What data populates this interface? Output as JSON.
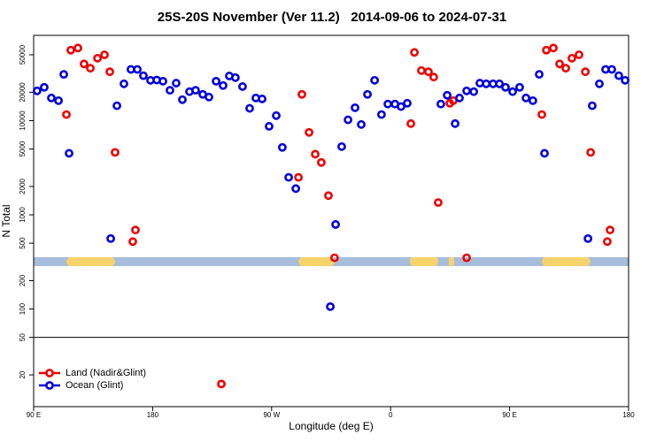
{
  "chart_data": {
    "type": "scatter",
    "title": "25S-20S November (Ver 11.2)   2014-09-06 to 2024-07-31",
    "x_label": "Longitude (deg E)",
    "y_label": "N Total",
    "xlim": [
      90,
      540
    ],
    "xticks": [
      {
        "value": 90,
        "label": "90 E"
      },
      180,
      {
        "value": 270,
        "label": "90 W"
      },
      {
        "value": 360,
        "label": "0"
      },
      {
        "value": 450,
        "label": "90 E"
      },
      {
        "value": 540,
        "label": "180"
      }
    ],
    "ylim": [
      9.2,
      80400
    ],
    "log_y": true,
    "yticks": [
      20,
      50,
      100,
      200,
      500,
      1000,
      2000,
      5000,
      10000,
      20000,
      50000
    ],
    "hline": 50,
    "legend": "bottom-left",
    "series": [
      {
        "name": "Land (Nadir&Glint)",
        "color": "#ee0000",
        "x": [
          114.8,
          118.1,
          123.5,
          128.1,
          132.9,
          138.3,
          143.6,
          147.6,
          151.6,
          165,
          167,
          232,
          290.3,
          292.9,
          298.3,
          303,
          307.6,
          313,
          317.6,
          375.3,
          378,
          383.3,
          388.6,
          392.6,
          396,
          404.8,
          407.4,
          417.5,
          474.4,
          477.8,
          483.1,
          487.8,
          492.5,
          497.1,
          502.5,
          507.3,
          511.3,
          523.9,
          526
        ],
        "values": [
          11600,
          56000,
          59000,
          40000,
          36000,
          46000,
          50000,
          33000,
          4600,
          520,
          690,
          16,
          2500,
          19000,
          7500,
          4400,
          3600,
          1600,
          350,
          9300,
          53000,
          34000,
          33000,
          29000,
          1350,
          15300,
          16300,
          350,
          11600,
          56000,
          59000,
          40000,
          36000,
          46000,
          50000,
          33000,
          4600,
          520,
          690
        ]
      },
      {
        "name": "Ocean (Glint)",
        "color": "#0000dd",
        "x": [
          92.6,
          98,
          103.4,
          108.8,
          112.8,
          116.8,
          148.3,
          153,
          158.3,
          163.6,
          168.4,
          173,
          178.4,
          183.1,
          187.8,
          193.1,
          197.8,
          202.5,
          207.9,
          212.5,
          217.9,
          222.6,
          228,
          233.3,
          238,
          242.6,
          248,
          253.4,
          258.1,
          262.8,
          268.1,
          273.5,
          278.1,
          282.9,
          288.3,
          314.4,
          318.4,
          323,
          327.8,
          333.1,
          337.8,
          342.5,
          347.9,
          353.1,
          357.9,
          363.3,
          367.9,
          372.6,
          398,
          402.8,
          408.8,
          412.1,
          417.5,
          422.9,
          427.5,
          432.3,
          437.5,
          442.3,
          446.9,
          452.3,
          457.6,
          462.4,
          467.6,
          472.4,
          476.4,
          509.3,
          512.5,
          517.9,
          522.6,
          527.3,
          532.6,
          537.4
        ],
        "values": [
          20700,
          22600,
          17400,
          16300,
          31000,
          4500,
          560,
          14400,
          24600,
          35000,
          35000,
          30000,
          26800,
          27000,
          26200,
          21000,
          25000,
          16700,
          20300,
          21000,
          19000,
          17800,
          26200,
          23600,
          29800,
          28600,
          23000,
          13500,
          17400,
          17000,
          8700,
          11300,
          5200,
          2500,
          1900,
          106,
          790,
          5300,
          10200,
          13700,
          9100,
          19000,
          26800,
          11600,
          15000,
          15000,
          14100,
          15300,
          15000,
          18600,
          9300,
          17400,
          20700,
          20300,
          25000,
          24600,
          24600,
          24600,
          22600,
          20300,
          22600,
          17400,
          16300,
          31000,
          4500,
          560,
          14400,
          24600,
          35000,
          35000,
          30000,
          26800
        ]
      }
    ]
  }
}
